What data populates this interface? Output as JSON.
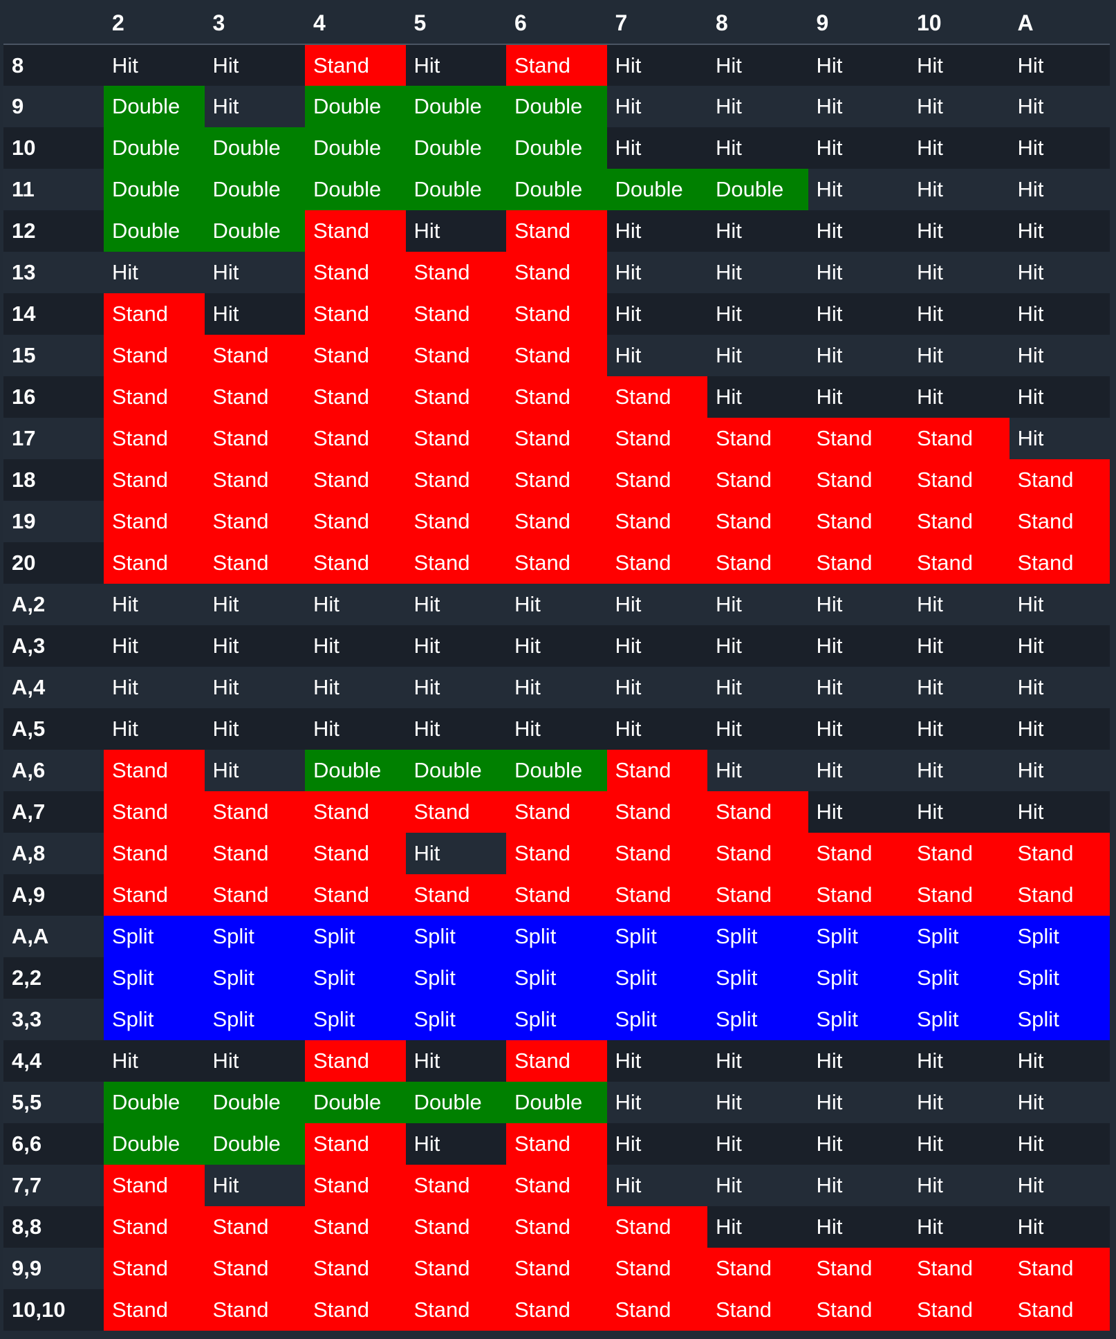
{
  "header": {
    "corner": "",
    "dealer_cards": [
      "2",
      "3",
      "4",
      "5",
      "6",
      "7",
      "8",
      "9",
      "10",
      "A"
    ]
  },
  "action_colors": {
    "Hit": "",
    "Stand": "#ff0000",
    "Double": "#008000",
    "Split": "#0000ff"
  },
  "rows": [
    {
      "hand": "8",
      "actions": [
        "Hit",
        "Hit",
        "Stand",
        "Hit",
        "Stand",
        "Hit",
        "Hit",
        "Hit",
        "Hit",
        "Hit"
      ]
    },
    {
      "hand": "9",
      "actions": [
        "Double",
        "Hit",
        "Double",
        "Double",
        "Double",
        "Hit",
        "Hit",
        "Hit",
        "Hit",
        "Hit"
      ]
    },
    {
      "hand": "10",
      "actions": [
        "Double",
        "Double",
        "Double",
        "Double",
        "Double",
        "Hit",
        "Hit",
        "Hit",
        "Hit",
        "Hit"
      ]
    },
    {
      "hand": "11",
      "actions": [
        "Double",
        "Double",
        "Double",
        "Double",
        "Double",
        "Double",
        "Double",
        "Hit",
        "Hit",
        "Hit"
      ]
    },
    {
      "hand": "12",
      "actions": [
        "Double",
        "Double",
        "Stand",
        "Hit",
        "Stand",
        "Hit",
        "Hit",
        "Hit",
        "Hit",
        "Hit"
      ]
    },
    {
      "hand": "13",
      "actions": [
        "Hit",
        "Hit",
        "Stand",
        "Stand",
        "Stand",
        "Hit",
        "Hit",
        "Hit",
        "Hit",
        "Hit"
      ]
    },
    {
      "hand": "14",
      "actions": [
        "Stand",
        "Hit",
        "Stand",
        "Stand",
        "Stand",
        "Hit",
        "Hit",
        "Hit",
        "Hit",
        "Hit"
      ]
    },
    {
      "hand": "15",
      "actions": [
        "Stand",
        "Stand",
        "Stand",
        "Stand",
        "Stand",
        "Hit",
        "Hit",
        "Hit",
        "Hit",
        "Hit"
      ]
    },
    {
      "hand": "16",
      "actions": [
        "Stand",
        "Stand",
        "Stand",
        "Stand",
        "Stand",
        "Stand",
        "Hit",
        "Hit",
        "Hit",
        "Hit"
      ]
    },
    {
      "hand": "17",
      "actions": [
        "Stand",
        "Stand",
        "Stand",
        "Stand",
        "Stand",
        "Stand",
        "Stand",
        "Stand",
        "Stand",
        "Hit"
      ]
    },
    {
      "hand": "18",
      "actions": [
        "Stand",
        "Stand",
        "Stand",
        "Stand",
        "Stand",
        "Stand",
        "Stand",
        "Stand",
        "Stand",
        "Stand"
      ]
    },
    {
      "hand": "19",
      "actions": [
        "Stand",
        "Stand",
        "Stand",
        "Stand",
        "Stand",
        "Stand",
        "Stand",
        "Stand",
        "Stand",
        "Stand"
      ]
    },
    {
      "hand": "20",
      "actions": [
        "Stand",
        "Stand",
        "Stand",
        "Stand",
        "Stand",
        "Stand",
        "Stand",
        "Stand",
        "Stand",
        "Stand"
      ]
    },
    {
      "hand": "A,2",
      "actions": [
        "Hit",
        "Hit",
        "Hit",
        "Hit",
        "Hit",
        "Hit",
        "Hit",
        "Hit",
        "Hit",
        "Hit"
      ]
    },
    {
      "hand": "A,3",
      "actions": [
        "Hit",
        "Hit",
        "Hit",
        "Hit",
        "Hit",
        "Hit",
        "Hit",
        "Hit",
        "Hit",
        "Hit"
      ]
    },
    {
      "hand": "A,4",
      "actions": [
        "Hit",
        "Hit",
        "Hit",
        "Hit",
        "Hit",
        "Hit",
        "Hit",
        "Hit",
        "Hit",
        "Hit"
      ]
    },
    {
      "hand": "A,5",
      "actions": [
        "Hit",
        "Hit",
        "Hit",
        "Hit",
        "Hit",
        "Hit",
        "Hit",
        "Hit",
        "Hit",
        "Hit"
      ]
    },
    {
      "hand": "A,6",
      "actions": [
        "Stand",
        "Hit",
        "Double",
        "Double",
        "Double",
        "Stand",
        "Hit",
        "Hit",
        "Hit",
        "Hit"
      ]
    },
    {
      "hand": "A,7",
      "actions": [
        "Stand",
        "Stand",
        "Stand",
        "Stand",
        "Stand",
        "Stand",
        "Stand",
        "Hit",
        "Hit",
        "Hit"
      ]
    },
    {
      "hand": "A,8",
      "actions": [
        "Stand",
        "Stand",
        "Stand",
        "Hit",
        "Stand",
        "Stand",
        "Stand",
        "Stand",
        "Stand",
        "Stand"
      ]
    },
    {
      "hand": "A,9",
      "actions": [
        "Stand",
        "Stand",
        "Stand",
        "Stand",
        "Stand",
        "Stand",
        "Stand",
        "Stand",
        "Stand",
        "Stand"
      ]
    },
    {
      "hand": "A,A",
      "actions": [
        "Split",
        "Split",
        "Split",
        "Split",
        "Split",
        "Split",
        "Split",
        "Split",
        "Split",
        "Split"
      ]
    },
    {
      "hand": "2,2",
      "actions": [
        "Split",
        "Split",
        "Split",
        "Split",
        "Split",
        "Split",
        "Split",
        "Split",
        "Split",
        "Split"
      ]
    },
    {
      "hand": "3,3",
      "actions": [
        "Split",
        "Split",
        "Split",
        "Split",
        "Split",
        "Split",
        "Split",
        "Split",
        "Split",
        "Split"
      ]
    },
    {
      "hand": "4,4",
      "actions": [
        "Hit",
        "Hit",
        "Stand",
        "Hit",
        "Stand",
        "Hit",
        "Hit",
        "Hit",
        "Hit",
        "Hit"
      ]
    },
    {
      "hand": "5,5",
      "actions": [
        "Double",
        "Double",
        "Double",
        "Double",
        "Double",
        "Hit",
        "Hit",
        "Hit",
        "Hit",
        "Hit"
      ]
    },
    {
      "hand": "6,6",
      "actions": [
        "Double",
        "Double",
        "Stand",
        "Hit",
        "Stand",
        "Hit",
        "Hit",
        "Hit",
        "Hit",
        "Hit"
      ]
    },
    {
      "hand": "7,7",
      "actions": [
        "Stand",
        "Hit",
        "Stand",
        "Stand",
        "Stand",
        "Hit",
        "Hit",
        "Hit",
        "Hit",
        "Hit"
      ]
    },
    {
      "hand": "8,8",
      "actions": [
        "Stand",
        "Stand",
        "Stand",
        "Stand",
        "Stand",
        "Stand",
        "Hit",
        "Hit",
        "Hit",
        "Hit"
      ]
    },
    {
      "hand": "9,9",
      "actions": [
        "Stand",
        "Stand",
        "Stand",
        "Stand",
        "Stand",
        "Stand",
        "Stand",
        "Stand",
        "Stand",
        "Stand"
      ]
    },
    {
      "hand": "10,10",
      "actions": [
        "Stand",
        "Stand",
        "Stand",
        "Stand",
        "Stand",
        "Stand",
        "Stand",
        "Stand",
        "Stand",
        "Stand"
      ]
    }
  ]
}
